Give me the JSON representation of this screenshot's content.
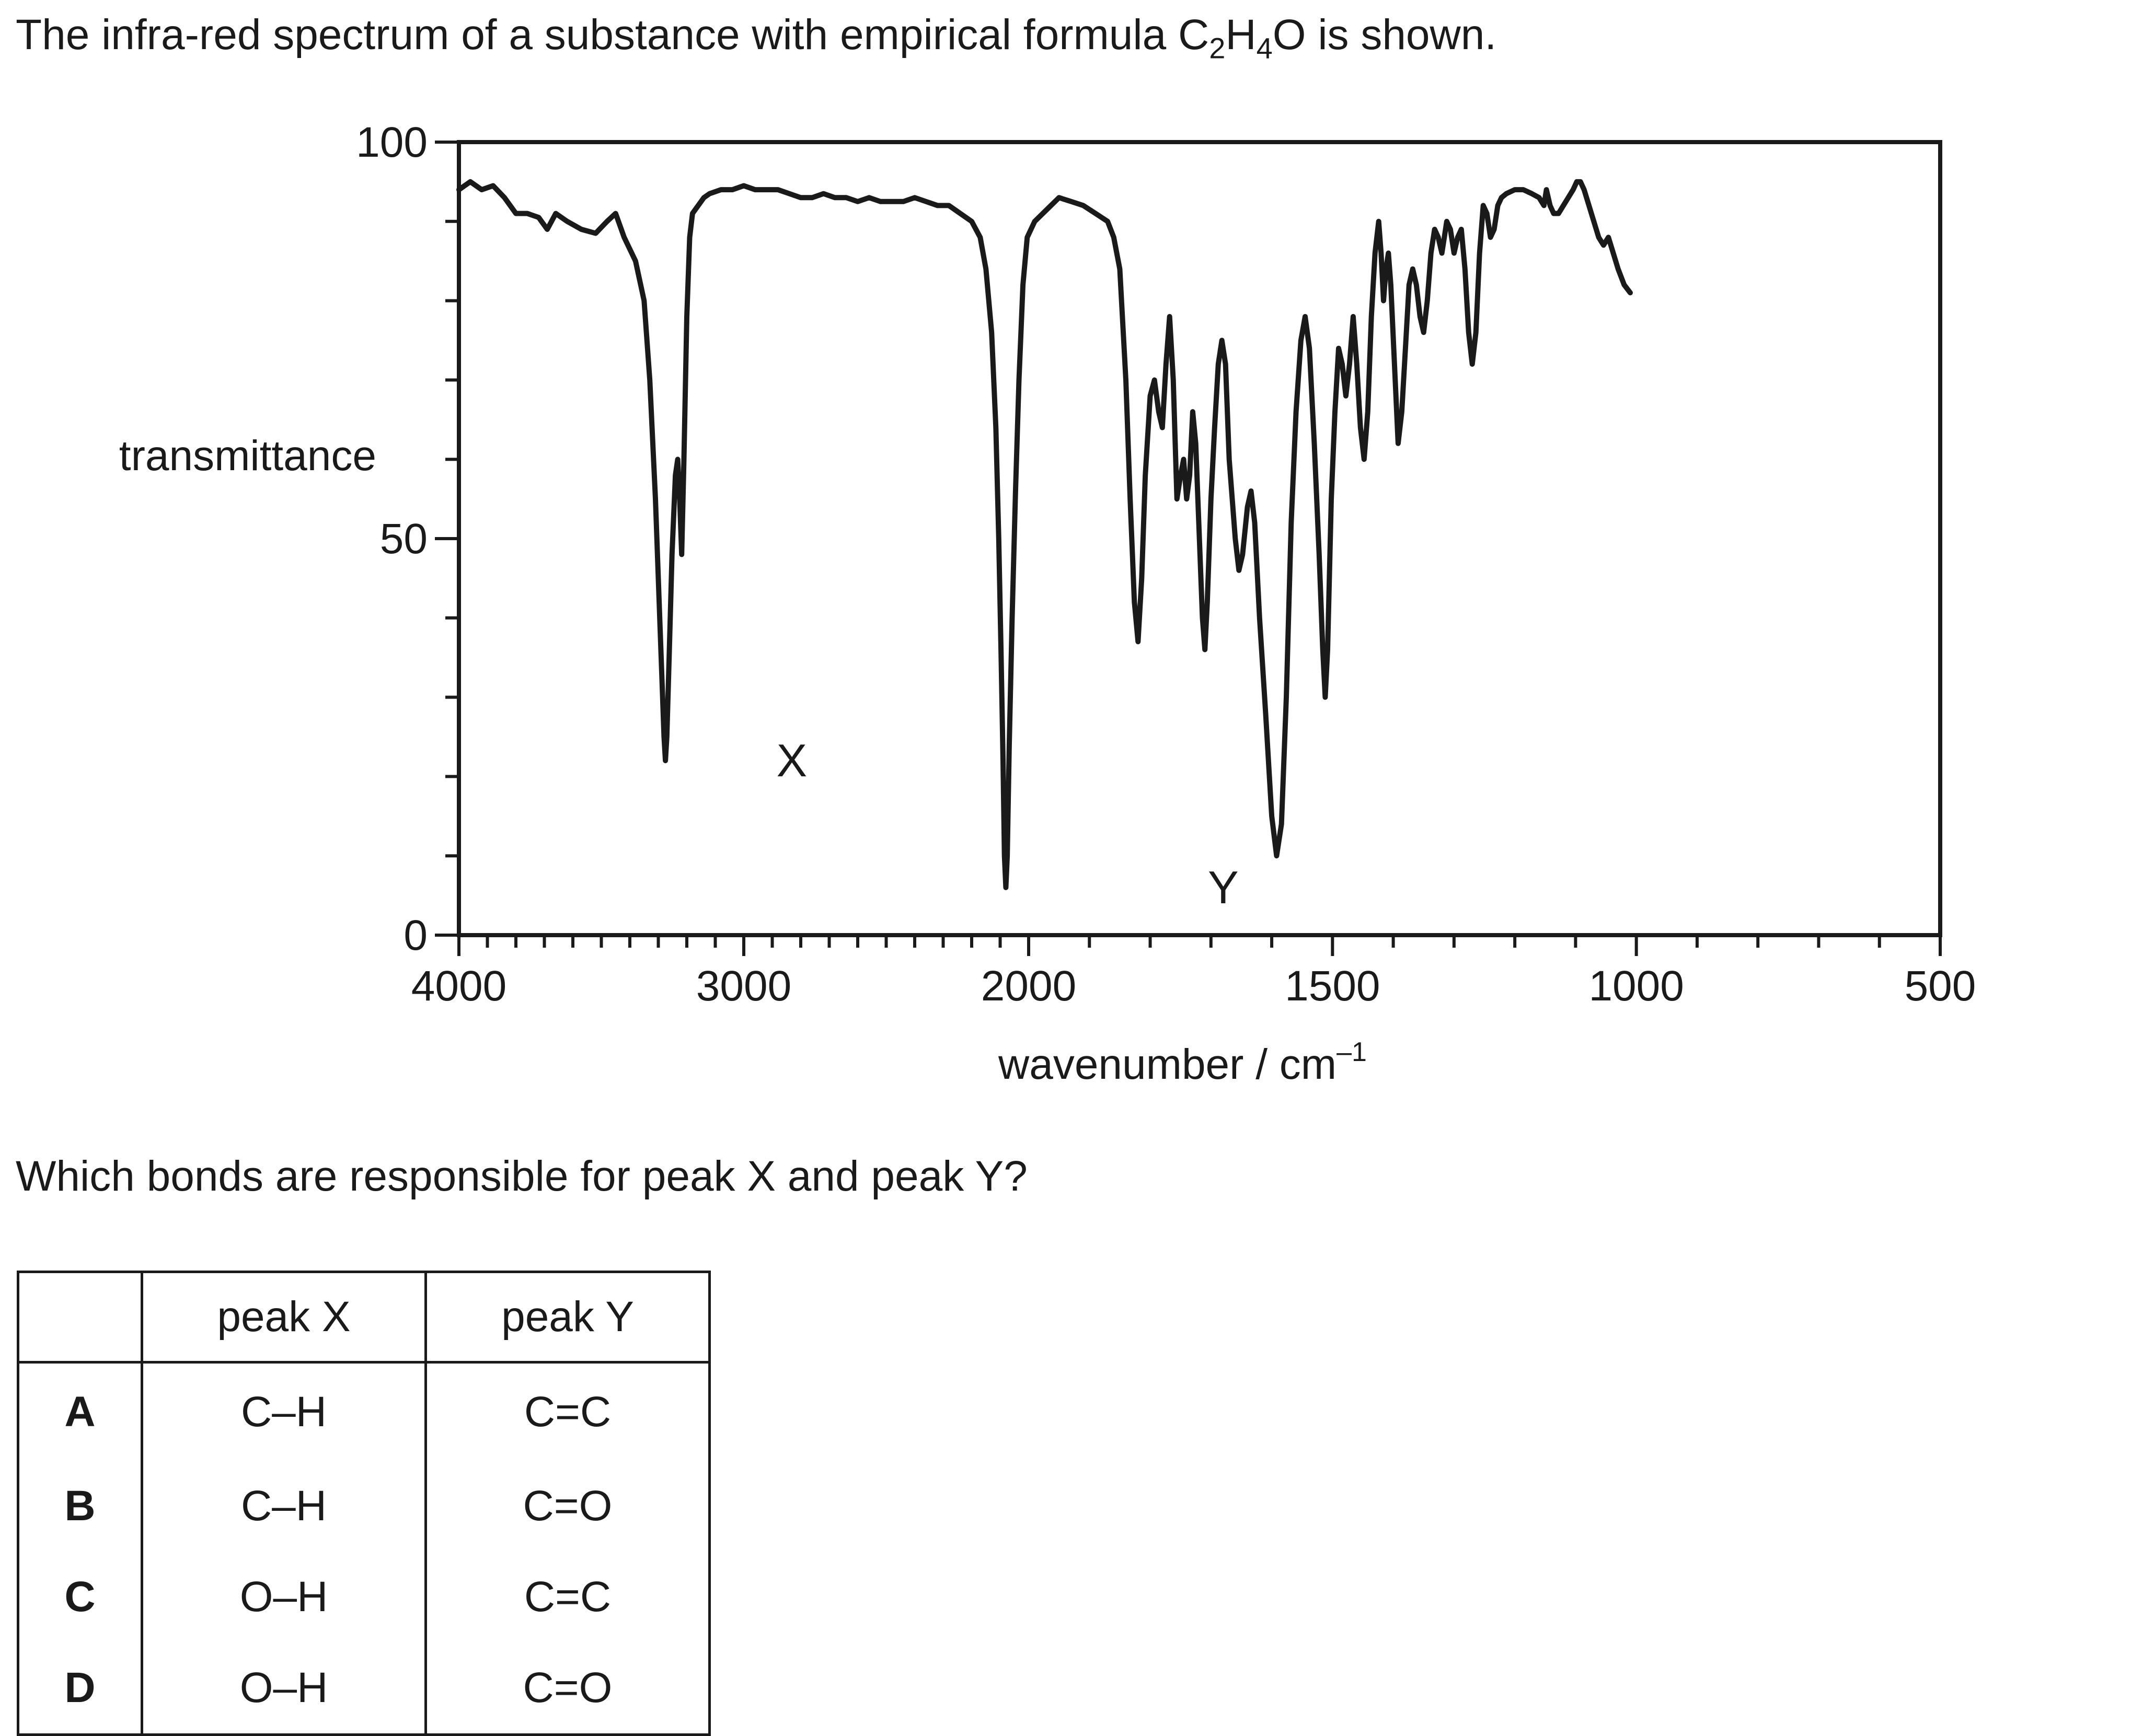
{
  "intro": {
    "text_before": "The infra-red spectrum of a substance with empirical formula C",
    "sub1": "2",
    "text_mid": "H",
    "sub2": "4",
    "text_after": "O is shown."
  },
  "question": "Which bonds are responsible for peak X and peak Y?",
  "chart_data": {
    "type": "line",
    "ylabel": "transmittance",
    "xlabel_main": "wavenumber / cm",
    "xlabel_sup": "–1",
    "ylim": [
      0,
      100
    ],
    "y_ticks": [
      "0",
      "50",
      "100"
    ],
    "x_ticks": [
      {
        "value": 4000,
        "label": "4000"
      },
      {
        "value": 3000,
        "label": "3000"
      },
      {
        "value": 2000,
        "label": "2000"
      },
      {
        "value": 1500,
        "label": "1500"
      },
      {
        "value": 1000,
        "label": "1000"
      },
      {
        "value": 500,
        "label": "500"
      }
    ],
    "annotations": [
      {
        "label": "X",
        "x": 2960,
        "y": 22
      },
      {
        "label": "Y",
        "x": 1740,
        "y": 6
      }
    ],
    "grid": false,
    "series": [
      {
        "points": [
          [
            4000,
            94
          ],
          [
            3960,
            95
          ],
          [
            3920,
            94
          ],
          [
            3880,
            94.5
          ],
          [
            3840,
            93
          ],
          [
            3800,
            91
          ],
          [
            3760,
            91
          ],
          [
            3720,
            90.5
          ],
          [
            3690,
            89
          ],
          [
            3660,
            91
          ],
          [
            3620,
            90
          ],
          [
            3570,
            89
          ],
          [
            3520,
            88.5
          ],
          [
            3480,
            90
          ],
          [
            3450,
            91
          ],
          [
            3420,
            88
          ],
          [
            3380,
            85
          ],
          [
            3350,
            80
          ],
          [
            3330,
            70
          ],
          [
            3310,
            55
          ],
          [
            3295,
            40
          ],
          [
            3285,
            30
          ],
          [
            3280,
            25
          ],
          [
            3275,
            22
          ],
          [
            3270,
            25
          ],
          [
            3262,
            35
          ],
          [
            3252,
            48
          ],
          [
            3240,
            58
          ],
          [
            3232,
            60
          ],
          [
            3225,
            55
          ],
          [
            3218,
            48
          ],
          [
            3210,
            60
          ],
          [
            3200,
            78
          ],
          [
            3190,
            88
          ],
          [
            3180,
            91
          ],
          [
            3160,
            92
          ],
          [
            3140,
            93
          ],
          [
            3120,
            93.5
          ],
          [
            3080,
            94
          ],
          [
            3040,
            94
          ],
          [
            3000,
            94.5
          ],
          [
            2960,
            94
          ],
          [
            2920,
            94
          ],
          [
            2880,
            94
          ],
          [
            2840,
            93.5
          ],
          [
            2800,
            93
          ],
          [
            2760,
            93
          ],
          [
            2720,
            93.5
          ],
          [
            2680,
            93
          ],
          [
            2640,
            93
          ],
          [
            2600,
            92.5
          ],
          [
            2560,
            93
          ],
          [
            2520,
            92.5
          ],
          [
            2480,
            92.5
          ],
          [
            2440,
            92.5
          ],
          [
            2400,
            93
          ],
          [
            2360,
            92.5
          ],
          [
            2320,
            92
          ],
          [
            2280,
            92
          ],
          [
            2240,
            91
          ],
          [
            2200,
            90
          ],
          [
            2170,
            88
          ],
          [
            2150,
            84
          ],
          [
            2130,
            76
          ],
          [
            2115,
            64
          ],
          [
            2105,
            50
          ],
          [
            2097,
            36
          ],
          [
            2090,
            22
          ],
          [
            2085,
            10
          ],
          [
            2080,
            6
          ],
          [
            2075,
            10
          ],
          [
            2068,
            24
          ],
          [
            2058,
            40
          ],
          [
            2046,
            56
          ],
          [
            2034,
            70
          ],
          [
            2020,
            82
          ],
          [
            2005,
            88
          ],
          [
            1990,
            90
          ],
          [
            1970,
            91.5
          ],
          [
            1950,
            93
          ],
          [
            1930,
            92.5
          ],
          [
            1910,
            92
          ],
          [
            1890,
            91
          ],
          [
            1870,
            90
          ],
          [
            1860,
            88
          ],
          [
            1850,
            84
          ],
          [
            1840,
            70
          ],
          [
            1833,
            55
          ],
          [
            1826,
            42
          ],
          [
            1820,
            37
          ],
          [
            1814,
            45
          ],
          [
            1808,
            58
          ],
          [
            1800,
            68
          ],
          [
            1793,
            70
          ],
          [
            1786,
            66
          ],
          [
            1780,
            64
          ],
          [
            1774,
            72
          ],
          [
            1768,
            78
          ],
          [
            1762,
            70
          ],
          [
            1756,
            55
          ],
          [
            1750,
            58
          ],
          [
            1745,
            60
          ],
          [
            1740,
            55
          ],
          [
            1735,
            58
          ],
          [
            1730,
            66
          ],
          [
            1725,
            62
          ],
          [
            1720,
            52
          ],
          [
            1714,
            40
          ],
          [
            1710,
            36
          ],
          [
            1706,
            42
          ],
          [
            1700,
            55
          ],
          [
            1694,
            64
          ],
          [
            1688,
            72
          ],
          [
            1682,
            75
          ],
          [
            1676,
            72
          ],
          [
            1670,
            60
          ],
          [
            1660,
            50
          ],
          [
            1654,
            46
          ],
          [
            1648,
            48
          ],
          [
            1640,
            54
          ],
          [
            1634,
            56
          ],
          [
            1628,
            52
          ],
          [
            1620,
            40
          ],
          [
            1610,
            28
          ],
          [
            1600,
            15
          ],
          [
            1592,
            10
          ],
          [
            1584,
            14
          ],
          [
            1576,
            30
          ],
          [
            1568,
            52
          ],
          [
            1560,
            66
          ],
          [
            1552,
            75
          ],
          [
            1545,
            78
          ],
          [
            1538,
            74
          ],
          [
            1530,
            62
          ],
          [
            1522,
            48
          ],
          [
            1516,
            36
          ],
          [
            1512,
            30
          ],
          [
            1508,
            36
          ],
          [
            1502,
            55
          ],
          [
            1496,
            66
          ],
          [
            1490,
            74
          ],
          [
            1484,
            72
          ],
          [
            1478,
            68
          ],
          [
            1472,
            72
          ],
          [
            1466,
            78
          ],
          [
            1460,
            72
          ],
          [
            1454,
            64
          ],
          [
            1448,
            60
          ],
          [
            1442,
            66
          ],
          [
            1436,
            78
          ],
          [
            1430,
            86
          ],
          [
            1424,
            90
          ],
          [
            1420,
            86
          ],
          [
            1416,
            80
          ],
          [
            1412,
            84
          ],
          [
            1408,
            86
          ],
          [
            1404,
            82
          ],
          [
            1398,
            72
          ],
          [
            1392,
            62
          ],
          [
            1386,
            66
          ],
          [
            1380,
            74
          ],
          [
            1374,
            82
          ],
          [
            1368,
            84
          ],
          [
            1362,
            82
          ],
          [
            1356,
            78
          ],
          [
            1350,
            76
          ],
          [
            1344,
            80
          ],
          [
            1338,
            86
          ],
          [
            1332,
            89
          ],
          [
            1326,
            88
          ],
          [
            1320,
            86
          ],
          [
            1316,
            88
          ],
          [
            1312,
            90
          ],
          [
            1306,
            89
          ],
          [
            1300,
            86
          ],
          [
            1294,
            88
          ],
          [
            1288,
            89
          ],
          [
            1282,
            84
          ],
          [
            1276,
            76
          ],
          [
            1270,
            72
          ],
          [
            1264,
            76
          ],
          [
            1258,
            86
          ],
          [
            1252,
            92
          ],
          [
            1246,
            91
          ],
          [
            1240,
            88
          ],
          [
            1234,
            89
          ],
          [
            1228,
            92
          ],
          [
            1222,
            93
          ],
          [
            1214,
            93.5
          ],
          [
            1200,
            94
          ],
          [
            1186,
            94
          ],
          [
            1172,
            93.5
          ],
          [
            1160,
            93
          ],
          [
            1152,
            92
          ],
          [
            1148,
            94
          ],
          [
            1142,
            92
          ],
          [
            1136,
            91
          ],
          [
            1128,
            91
          ],
          [
            1120,
            92
          ],
          [
            1112,
            93
          ],
          [
            1104,
            94
          ],
          [
            1098,
            95
          ],
          [
            1092,
            95
          ],
          [
            1086,
            94
          ],
          [
            1078,
            92
          ],
          [
            1070,
            90
          ],
          [
            1062,
            88
          ],
          [
            1054,
            87
          ],
          [
            1046,
            88
          ],
          [
            1038,
            86
          ],
          [
            1030,
            84
          ],
          [
            1020,
            82
          ],
          [
            1010,
            81
          ]
        ]
      }
    ]
  },
  "table": {
    "headers": [
      "",
      "peak X",
      "peak Y"
    ],
    "rows": [
      {
        "letter": "A",
        "x": "C–H",
        "y": "C=C"
      },
      {
        "letter": "B",
        "x": "C–H",
        "y": "C=O"
      },
      {
        "letter": "C",
        "x": "O–H",
        "y": "C=C"
      },
      {
        "letter": "D",
        "x": "O–H",
        "y": "C=O"
      }
    ]
  }
}
